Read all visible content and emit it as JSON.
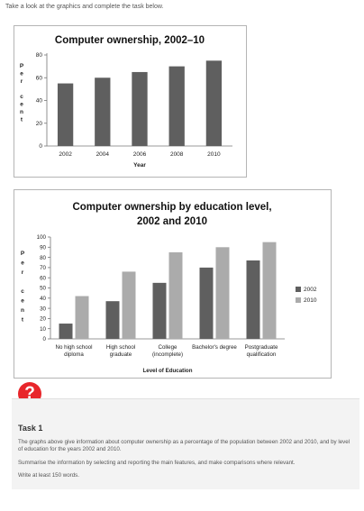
{
  "intro": "Take a look at the graphics and complete the task below.",
  "colors": {
    "dark_bar": "#5f5f5f",
    "light_bar": "#ababab",
    "icon": "#e8262b"
  },
  "chart_data": [
    {
      "type": "bar",
      "title": "Computer ownership, 2002–10",
      "xlabel": "Year",
      "ylabel": "Per cent",
      "categories": [
        "2002",
        "2004",
        "2006",
        "2008",
        "2010"
      ],
      "values": [
        55,
        60,
        65,
        70,
        75
      ],
      "ylim": [
        0,
        80
      ],
      "yticks": [
        0,
        20,
        40,
        60,
        80
      ],
      "grid": false
    },
    {
      "type": "bar",
      "title_lines": [
        "Computer ownership by education level,",
        "2002 and 2010"
      ],
      "xlabel": "Level of Education",
      "ylabel": "Per cent",
      "categories": [
        [
          "No high school",
          "diploma"
        ],
        [
          "High school",
          "graduate"
        ],
        [
          "College",
          "(incomplete)"
        ],
        [
          "Bachelor's degree"
        ],
        [
          "Postgraduate",
          "qualification"
        ]
      ],
      "series": [
        {
          "name": "2002",
          "values": [
            15,
            37,
            55,
            70,
            77
          ]
        },
        {
          "name": "2010",
          "values": [
            42,
            66,
            85,
            90,
            95
          ]
        }
      ],
      "ylim": [
        0,
        100
      ],
      "yticks": [
        0,
        10,
        20,
        30,
        40,
        50,
        60,
        70,
        80,
        90,
        100
      ],
      "legend": "right",
      "grid": false
    }
  ],
  "task": {
    "icon": "?",
    "title": "Task 1",
    "p1": "The graphs above give information about computer ownership as a percentage of the population between 2002 and 2010, and by level of education for the years 2002 and 2010.",
    "p2": "Summarise the information by selecting and reporting the main features, and make comparisons where relevant.",
    "p3": "Write at least 150 words."
  }
}
